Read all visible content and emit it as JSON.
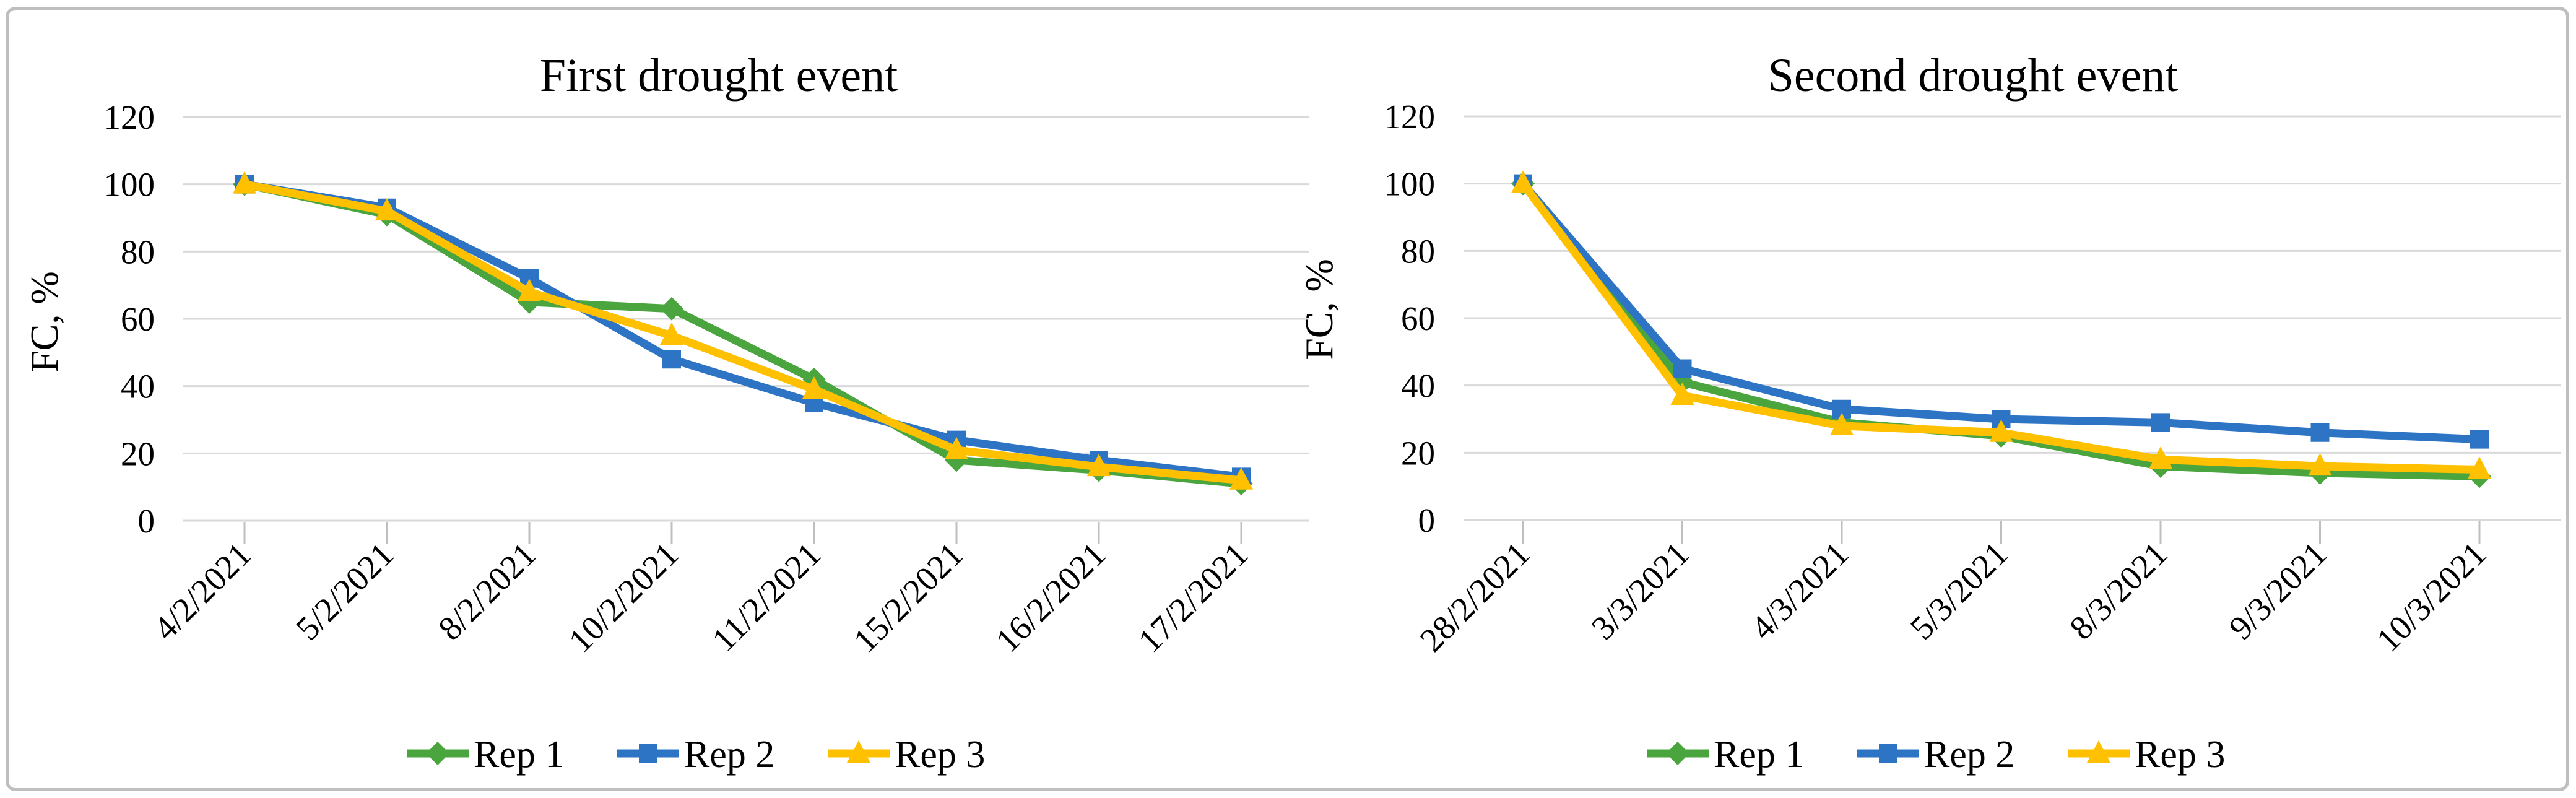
{
  "figure": {
    "background": "#FFFFFF",
    "border_color": "#BFBFBF",
    "grid_color": "#D9D9D9",
    "tick_color": "#BFBFBF",
    "text_color": "#000000"
  },
  "chart_data": [
    {
      "type": "line",
      "title": "First drought event",
      "xlabel": "",
      "ylabel": "FC, %",
      "ylim": [
        0,
        120
      ],
      "yticks": [
        0,
        20,
        40,
        60,
        80,
        100,
        120
      ],
      "grid": true,
      "legend_position": "bottom",
      "categories": [
        "4/2/2021",
        "5/2/2021",
        "8/2/2021",
        "10/2/2021",
        "11/2/2021",
        "15/2/2021",
        "16/2/2021",
        "17/2/2021"
      ],
      "series": [
        {
          "name": "Rep 1",
          "color": "#4BA53F",
          "marker": "diamond",
          "values": [
            100,
            91,
            65,
            63,
            42,
            18,
            15,
            11
          ]
        },
        {
          "name": "Rep 2",
          "color": "#2E74C4",
          "marker": "square",
          "values": [
            100,
            93,
            72,
            48,
            35,
            24,
            18,
            13
          ]
        },
        {
          "name": "Rep 3",
          "color": "#FFC000",
          "marker": "triangle",
          "values": [
            100,
            92,
            68,
            55,
            39,
            21,
            16,
            12
          ]
        }
      ]
    },
    {
      "type": "line",
      "title": "Second drought event",
      "xlabel": "",
      "ylabel": "FC, %",
      "ylim": [
        0,
        120
      ],
      "yticks": [
        0,
        20,
        40,
        60,
        80,
        100,
        120
      ],
      "grid": true,
      "legend_position": "bottom",
      "categories": [
        "28/2/2021",
        "3/3/2021",
        "4/3/2021",
        "5/3/2021",
        "8/3/2021",
        "9/3/2021",
        "10/3/2021"
      ],
      "series": [
        {
          "name": "Rep 1",
          "color": "#4BA53F",
          "marker": "diamond",
          "values": [
            100,
            41,
            29,
            25,
            16,
            14,
            13
          ]
        },
        {
          "name": "Rep 2",
          "color": "#2E74C4",
          "marker": "square",
          "values": [
            100,
            45,
            33,
            30,
            29,
            26,
            24
          ]
        },
        {
          "name": "Rep 3",
          "color": "#FFC000",
          "marker": "triangle",
          "values": [
            100,
            37,
            28,
            26,
            18,
            16,
            15
          ]
        }
      ]
    }
  ]
}
